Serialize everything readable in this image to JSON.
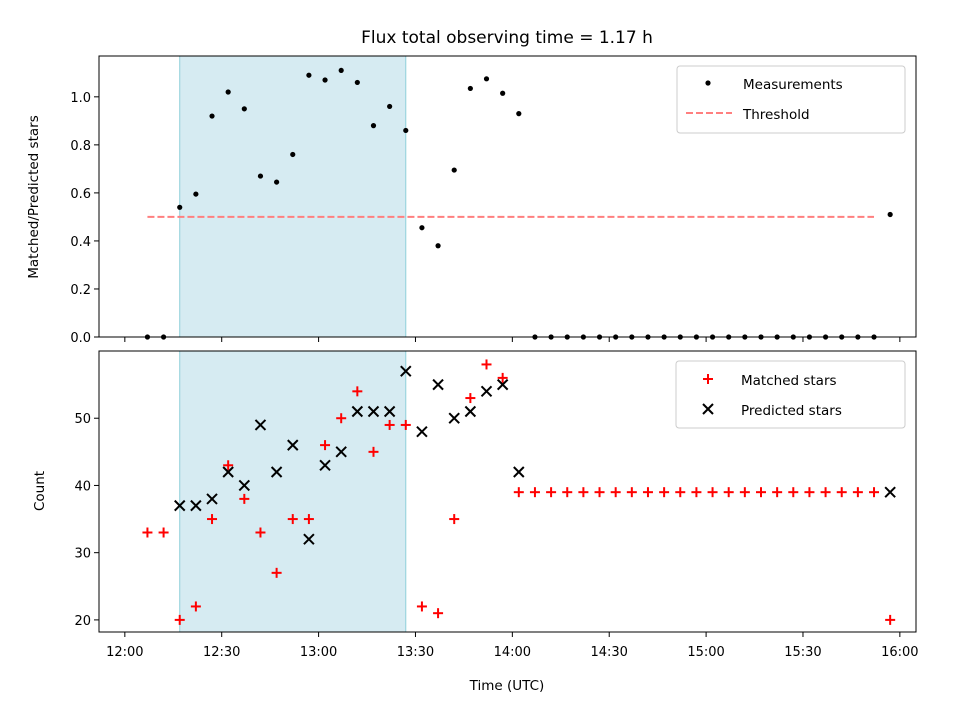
{
  "chart_data": [
    {
      "type": "scatter",
      "title": "Flux total observing time = 1.17 h",
      "xlabel": "",
      "ylabel": "Matched/Predicted stars",
      "x_unit": "minutes since 12:00 UTC",
      "xlim": [
        -8,
        245
      ],
      "ylim": [
        0,
        1.17
      ],
      "yticks": [
        0.0,
        0.2,
        0.4,
        0.6,
        0.8,
        1.0
      ],
      "ytick_labels": [
        "0.0",
        "0.2",
        "0.4",
        "0.6",
        "0.8",
        "1.0"
      ],
      "observing_window": [
        17,
        87
      ],
      "legend_position": "top-right",
      "series": [
        {
          "name": "Measurements",
          "style": "dot",
          "color": "#000000",
          "x": [
            7,
            12,
            17,
            22,
            27,
            32,
            37,
            42,
            47,
            52,
            57,
            62,
            67,
            72,
            77,
            82,
            87,
            92,
            97,
            102,
            107,
            112,
            117,
            122,
            127,
            132,
            137,
            142,
            147,
            152,
            157,
            162,
            167,
            172,
            177,
            182,
            187,
            192,
            197,
            202,
            207,
            212,
            217,
            222,
            227,
            232,
            237
          ],
          "values": [
            0,
            0,
            0.54,
            0.595,
            0.92,
            1.02,
            0.95,
            0.67,
            0.645,
            0.76,
            1.09,
            1.07,
            1.11,
            1.06,
            0.88,
            0.96,
            0.86,
            0.455,
            0.38,
            0.695,
            1.035,
            1.075,
            1.015,
            0.93,
            0,
            0,
            0,
            0,
            0,
            0,
            0,
            0,
            0,
            0,
            0,
            0,
            0,
            0,
            0,
            0,
            0,
            0,
            0,
            0,
            0,
            0,
            0.51
          ]
        },
        {
          "name": "Threshold",
          "style": "dashed-line",
          "color": "#ff7f7f",
          "x": [
            7,
            232
          ],
          "values": [
            0.5,
            0.5
          ]
        }
      ]
    },
    {
      "type": "scatter",
      "title": "",
      "xlabel": "Time (UTC)",
      "ylabel": "Count",
      "x_unit": "minutes since 12:00 UTC",
      "xlim": [
        -8,
        245
      ],
      "ylim": [
        18.2,
        60
      ],
      "yticks": [
        20,
        30,
        40,
        50
      ],
      "ytick_labels": [
        "20",
        "30",
        "40",
        "50"
      ],
      "xticks": [
        0,
        30,
        60,
        90,
        120,
        150,
        180,
        210,
        240
      ],
      "xtick_labels": [
        "12:00",
        "12:30",
        "13:00",
        "13:30",
        "14:00",
        "14:30",
        "15:00",
        "15:30",
        "16:00"
      ],
      "observing_window": [
        17,
        87
      ],
      "legend_position": "top-right",
      "series": [
        {
          "name": "Matched stars",
          "style": "plus",
          "color": "#ff0000",
          "x": [
            7,
            12,
            17,
            22,
            27,
            32,
            37,
            42,
            47,
            52,
            57,
            62,
            67,
            72,
            77,
            82,
            87,
            92,
            97,
            102,
            107,
            112,
            117,
            122,
            127,
            132,
            137,
            142,
            147,
            152,
            157,
            162,
            167,
            172,
            177,
            182,
            187,
            192,
            197,
            202,
            207,
            212,
            217,
            222,
            227,
            232,
            237
          ],
          "values": [
            33,
            33,
            20,
            22,
            35,
            43,
            38,
            33,
            27,
            35,
            35,
            46,
            50,
            54,
            45,
            49,
            49,
            22,
            21,
            35,
            53,
            58,
            56,
            39,
            39,
            39,
            39,
            39,
            39,
            39,
            39,
            39,
            39,
            39,
            39,
            39,
            39,
            39,
            39,
            39,
            39,
            39,
            39,
            39,
            39,
            39,
            20
          ]
        },
        {
          "name": "Predicted stars",
          "style": "x",
          "color": "#000000",
          "x": [
            17,
            22,
            27,
            32,
            37,
            42,
            47,
            52,
            57,
            62,
            67,
            72,
            77,
            82,
            87,
            92,
            97,
            102,
            107,
            112,
            117,
            122,
            237
          ],
          "values": [
            37,
            37,
            38,
            42,
            40,
            49,
            42,
            46,
            32,
            43,
            45,
            51,
            51,
            51,
            57,
            48,
            55,
            50,
            51,
            54,
            55,
            42,
            39
          ]
        }
      ]
    }
  ],
  "colors": {
    "observing_window_fill": "#add8e6",
    "observing_window_edge": "#8fcfda"
  }
}
